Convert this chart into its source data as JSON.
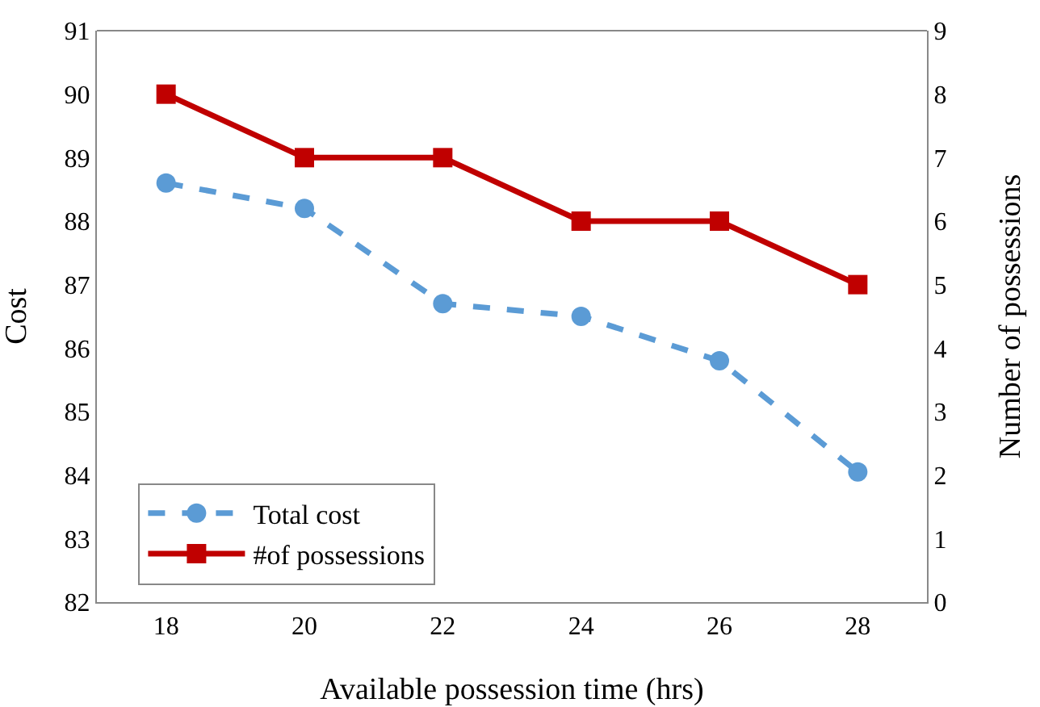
{
  "chart_data": {
    "type": "line",
    "xlabel": "Available possession time (hrs)",
    "ylabel": "Cost",
    "y2label": "Number of possessions",
    "x": [
      18,
      20,
      22,
      24,
      26,
      28
    ],
    "xlim": [
      17,
      29
    ],
    "xticks": [
      18,
      20,
      22,
      24,
      26,
      28
    ],
    "ylim": [
      82,
      91
    ],
    "yticks": [
      82,
      83,
      84,
      85,
      86,
      87,
      88,
      89,
      90,
      91
    ],
    "y2lim": [
      0,
      9
    ],
    "y2ticks": [
      0,
      1,
      2,
      3,
      4,
      5,
      6,
      7,
      8,
      9
    ],
    "series": [
      {
        "name": "Total cost",
        "color": "#5b9bd5",
        "values": [
          88.6,
          88.2,
          86.7,
          86.5,
          85.8,
          84.05
        ],
        "marker": "circle",
        "line_style": "dashed"
      },
      {
        "name": "#of possessions",
        "color": "#c00000",
        "values": [
          8,
          7,
          7,
          6,
          6,
          5
        ],
        "axis": "y2",
        "marker": "square",
        "line_style": "solid"
      }
    ],
    "grid": false,
    "legend": "bottom left"
  }
}
